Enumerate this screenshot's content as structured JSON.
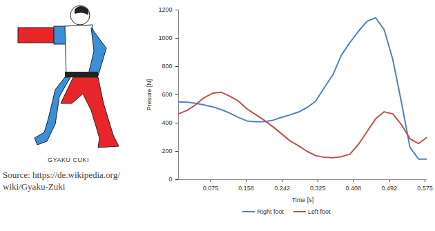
{
  "figure": {
    "caption": "GYAKU CUKI",
    "source": "Source: https://de.wikipedia.org/wiki/Gyaku-Zuki"
  },
  "chart_data": {
    "type": "line",
    "xlabel": "Time [s]",
    "ylabel": "Presure [N]",
    "x": [
      0,
      0.02,
      0.04,
      0.06,
      0.08,
      0.1,
      0.12,
      0.14,
      0.16,
      0.18,
      0.2,
      0.22,
      0.24,
      0.26,
      0.28,
      0.3,
      0.32,
      0.34,
      0.36,
      0.38,
      0.4,
      0.42,
      0.44,
      0.46,
      0.48,
      0.5,
      0.52,
      0.54,
      0.56,
      0.58
    ],
    "series": [
      {
        "name": "Right foot",
        "color": "#4f81bd",
        "values": [
          550,
          548,
          540,
          528,
          515,
          495,
          470,
          440,
          415,
          410,
          410,
          420,
          440,
          458,
          478,
          510,
          555,
          650,
          740,
          880,
          970,
          1050,
          1120,
          1145,
          1060,
          850,
          550,
          230,
          145,
          145
        ]
      },
      {
        "name": "Left foot",
        "color": "#c0504d",
        "values": [
          465,
          490,
          530,
          580,
          612,
          618,
          590,
          555,
          500,
          460,
          420,
          375,
          325,
          275,
          240,
          200,
          170,
          158,
          155,
          162,
          180,
          250,
          340,
          430,
          480,
          465,
          390,
          290,
          255,
          300
        ]
      }
    ],
    "xlim": [
      0,
      0.58
    ],
    "xticks": [
      0.075,
      0.158,
      0.242,
      0.325,
      0.408,
      0.492,
      0.575
    ],
    "ylim": [
      0,
      1200
    ],
    "yticks": [
      0,
      200,
      400,
      600,
      800,
      1000,
      1200
    ],
    "grid": false,
    "legend": "bottom"
  }
}
